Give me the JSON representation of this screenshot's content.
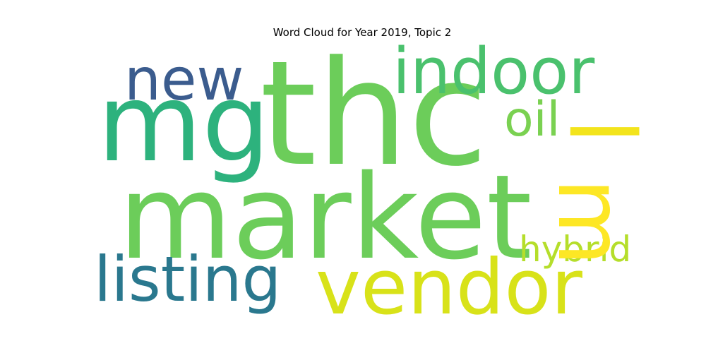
{
  "chart_data": {
    "type": "wordcloud",
    "title": "Word Cloud for Year 2019, Topic 2",
    "colormap": "viridis",
    "background": "#ffffff",
    "words": [
      {
        "text": "thc",
        "color": "#6ccd5a"
      },
      {
        "text": "mg",
        "color": "#2db27d"
      },
      {
        "text": "market",
        "color": "#6ccd5a"
      },
      {
        "text": "indoor",
        "color": "#4ac16d"
      },
      {
        "text": "new",
        "color": "#3b5c8e"
      },
      {
        "text": "oil",
        "color": "#7ad151"
      },
      {
        "text": "vendor",
        "color": "#d8e219"
      },
      {
        "text": "listing",
        "color": "#2a788e"
      },
      {
        "text": "hybrid",
        "color": "#b5de2b"
      },
      {
        "text": "m",
        "color": "#fde725"
      },
      {
        "text": "l",
        "color": "#f3e41c"
      }
    ]
  }
}
